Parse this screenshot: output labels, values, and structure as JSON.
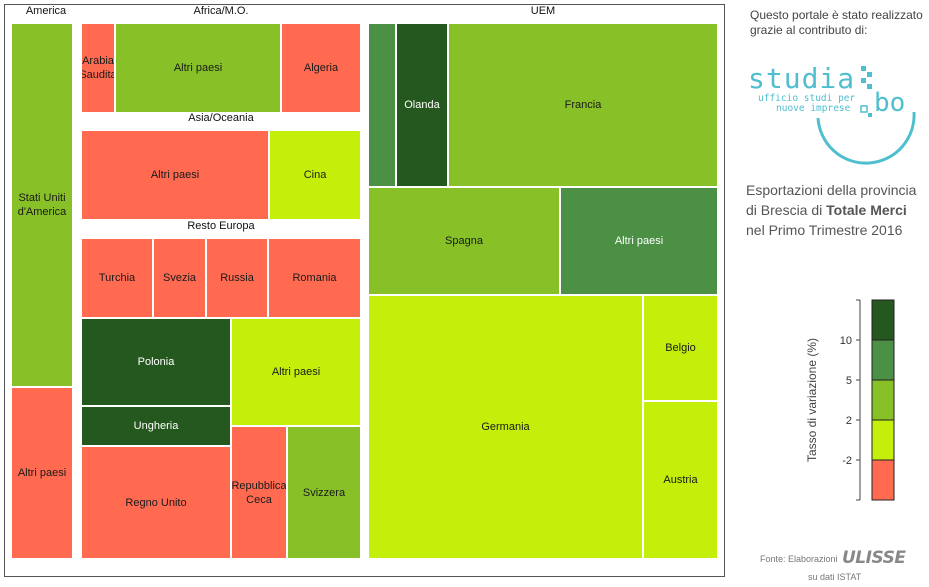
{
  "chart_data": {
    "type": "treemap",
    "title": "Esportazioni della provincia di Brescia di Totale Merci nel Primo Trimestre 2016",
    "legend": {
      "title": "Tasso di variazione (%)",
      "ticks": [
        "10",
        "5",
        "2",
        "-2"
      ],
      "colors": [
        "#25581f",
        "#4b9045",
        "#87c027",
        "#c4ef0a",
        "#ff6a50"
      ]
    },
    "groups": [
      {
        "name": "America",
        "items": [
          {
            "label": "Stati Uniti d'America",
            "class": 2
          },
          {
            "label": "Altri paesi",
            "class": 4
          }
        ]
      },
      {
        "name": "Africa/M.O.",
        "items": [
          {
            "label": "Arabia Saudita",
            "class": 4
          },
          {
            "label": "Altri paesi",
            "class": 2
          },
          {
            "label": "Algeria",
            "class": 4
          }
        ]
      },
      {
        "name": "Asia/Oceania",
        "items": [
          {
            "label": "Altri paesi",
            "class": 4
          },
          {
            "label": "Cina",
            "class": 3
          }
        ]
      },
      {
        "name": "Resto Europa",
        "items": [
          {
            "label": "Turchia",
            "class": 4
          },
          {
            "label": "Svezia",
            "class": 4
          },
          {
            "label": "Russia",
            "class": 4
          },
          {
            "label": "Romania",
            "class": 4
          },
          {
            "label": "Polonia",
            "class": 0
          },
          {
            "label": "Altri paesi",
            "class": 3
          },
          {
            "label": "Ungheria",
            "class": 0
          },
          {
            "label": "Regno Unito",
            "class": 4
          },
          {
            "label": "Repubblica Ceca",
            "class": 4
          },
          {
            "label": "Svizzera",
            "class": 2
          }
        ]
      },
      {
        "name": "UEM",
        "items": [
          {
            "label": "",
            "class": 1
          },
          {
            "label": "Olanda",
            "class": 0
          },
          {
            "label": "Francia",
            "class": 2
          },
          {
            "label": "Spagna",
            "class": 2
          },
          {
            "label": "Altri paesi",
            "class": 1
          },
          {
            "label": "Germania",
            "class": 3
          },
          {
            "label": "Belgio",
            "class": 3
          },
          {
            "label": "Austria",
            "class": 3
          }
        ]
      }
    ]
  },
  "sidebar": {
    "credit": "Questo portale è stato realizzato grazie al contributo di:",
    "logo_word": "studia",
    "logo_sub_1": "ufficio studi per",
    "logo_sub_2": "nuove imprese",
    "logo_bo": "bo",
    "title_pre": "Esportazioni della provincia di Brescia di ",
    "title_bold": "Totale Merci",
    "title_post": " nel Primo Trimestre 2016",
    "source_pre": "Fonte: Elaborazioni",
    "source_brand": "ULISSE",
    "source_post": "su dati ISTAT"
  }
}
